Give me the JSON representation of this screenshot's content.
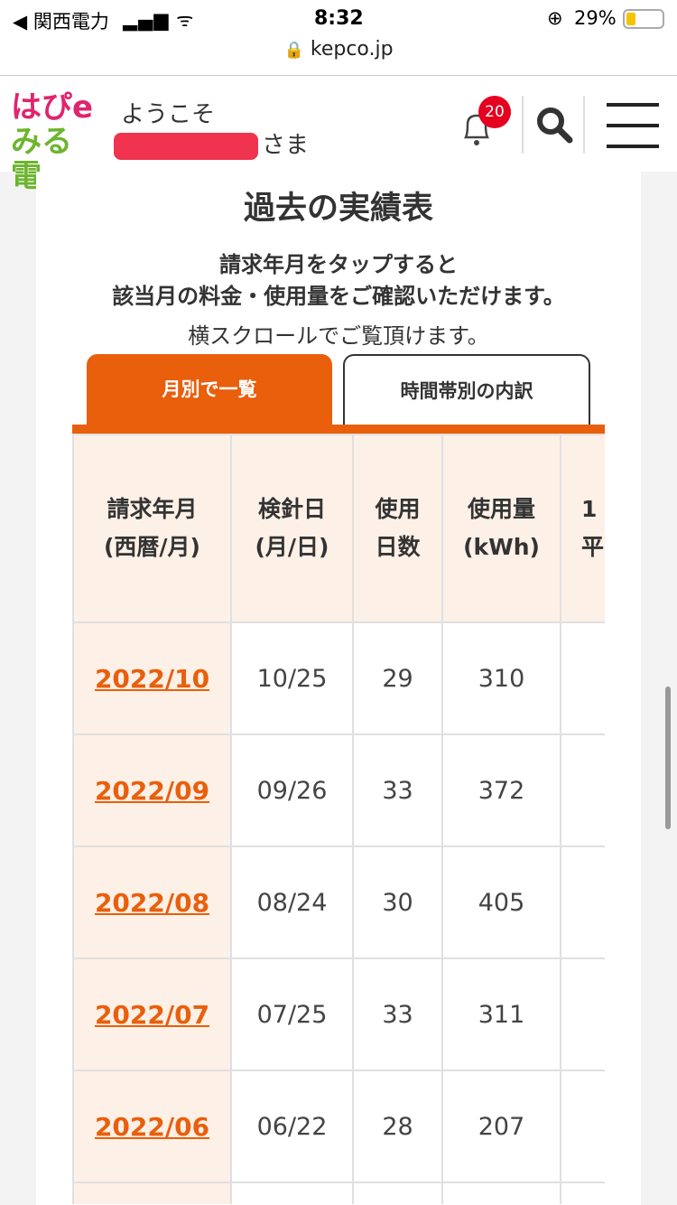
{
  "status_bar": {
    "carrier": "◀ 関西電力",
    "time": "8:32",
    "battery": "29%"
  },
  "browser": {
    "url": "kepco.jp"
  },
  "header": {
    "logo_line1": "はぴe",
    "logo_line2": "みる電",
    "welcome": "ようこそ",
    "name_suffix": "さま",
    "notification_count": "20"
  },
  "page": {
    "title": "過去の実績表",
    "desc_line1": "請求年月をタップすると",
    "desc_line2": "該当月の料金・使用量をご確認いただけます。",
    "note": "横スクロールでご覧頂けます。"
  },
  "tabs": [
    {
      "label": "月別で一覧",
      "active": true
    },
    {
      "label": "時間帯別の内訳",
      "active": false
    }
  ],
  "colors": {
    "accent": "#e95f0c",
    "header_bg": "#fdf0e7",
    "badge": "#e4001e"
  },
  "table": {
    "headers": [
      [
        "請求年月",
        "(西暦/月)"
      ],
      [
        "検針日",
        "(月/日)"
      ],
      [
        "使用",
        "日数"
      ],
      [
        "使用量",
        "(kWh)"
      ],
      [
        "1",
        "平"
      ]
    ],
    "rows": [
      {
        "month": "2022/10",
        "date": "10/25",
        "days": "29",
        "kwh": "310"
      },
      {
        "month": "2022/09",
        "date": "09/26",
        "days": "33",
        "kwh": "372"
      },
      {
        "month": "2022/08",
        "date": "08/24",
        "days": "30",
        "kwh": "405"
      },
      {
        "month": "2022/07",
        "date": "07/25",
        "days": "33",
        "kwh": "311"
      },
      {
        "month": "2022/06",
        "date": "06/22",
        "days": "28",
        "kwh": "207"
      }
    ]
  }
}
